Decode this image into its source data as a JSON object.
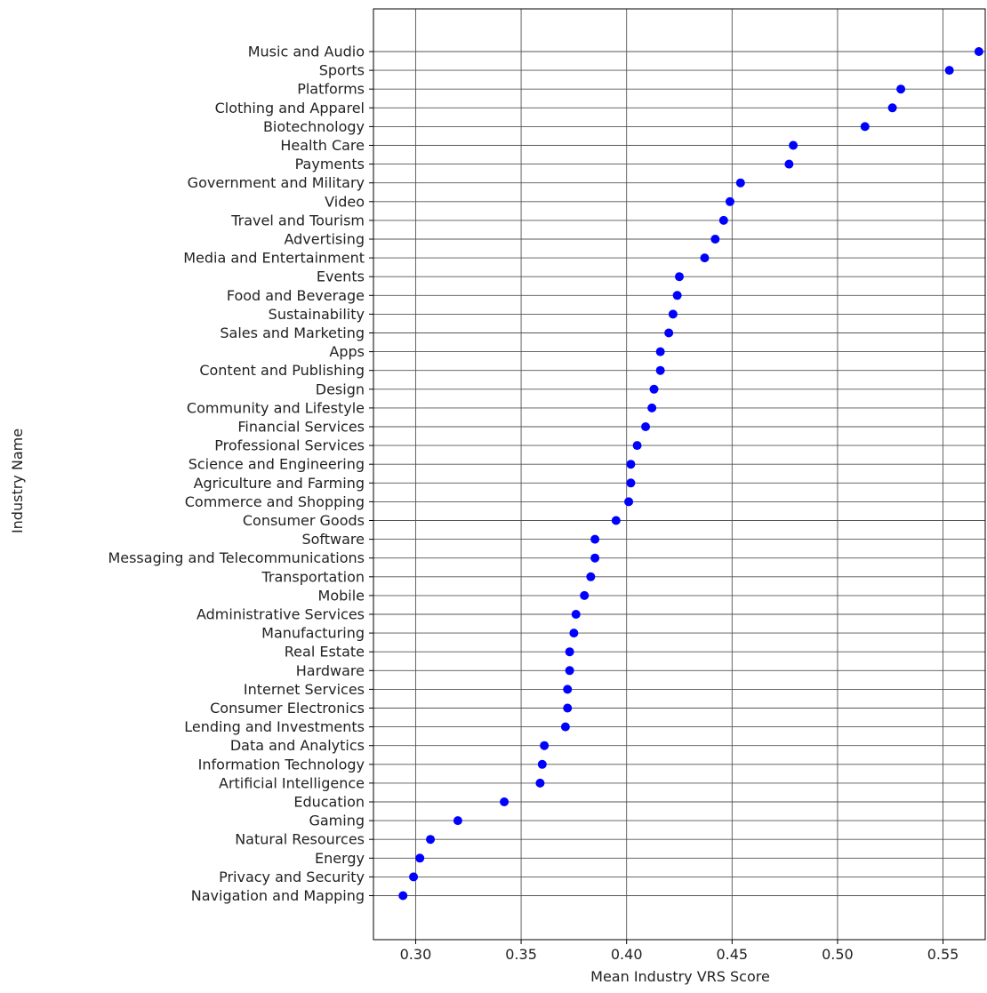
{
  "chart_data": {
    "type": "scatter",
    "title": "",
    "xlabel": "Mean Industry VRS Score",
    "ylabel": "Industry Name",
    "xlim": [
      0.28,
      0.57
    ],
    "xticks": [
      0.3,
      0.35,
      0.4,
      0.45,
      0.5,
      0.55
    ],
    "xtick_labels": [
      "0.30",
      "0.35",
      "0.40",
      "0.45",
      "0.50",
      "0.55"
    ],
    "grid": true,
    "marker_color": "#0000ff",
    "points": [
      {
        "category": "Music and Audio",
        "value": 0.567
      },
      {
        "category": "Sports",
        "value": 0.553
      },
      {
        "category": "Platforms",
        "value": 0.53
      },
      {
        "category": "Clothing and Apparel",
        "value": 0.526
      },
      {
        "category": "Biotechnology",
        "value": 0.513
      },
      {
        "category": "Health Care",
        "value": 0.479
      },
      {
        "category": "Payments",
        "value": 0.477
      },
      {
        "category": "Government and Military",
        "value": 0.454
      },
      {
        "category": "Video",
        "value": 0.449
      },
      {
        "category": "Travel and Tourism",
        "value": 0.446
      },
      {
        "category": "Advertising",
        "value": 0.442
      },
      {
        "category": "Media and Entertainment",
        "value": 0.437
      },
      {
        "category": "Events",
        "value": 0.425
      },
      {
        "category": "Food and Beverage",
        "value": 0.424
      },
      {
        "category": "Sustainability",
        "value": 0.422
      },
      {
        "category": "Sales and Marketing",
        "value": 0.42
      },
      {
        "category": "Apps",
        "value": 0.416
      },
      {
        "category": "Content and Publishing",
        "value": 0.416
      },
      {
        "category": "Design",
        "value": 0.413
      },
      {
        "category": "Community and Lifestyle",
        "value": 0.412
      },
      {
        "category": "Financial Services",
        "value": 0.409
      },
      {
        "category": "Professional Services",
        "value": 0.405
      },
      {
        "category": "Science and Engineering",
        "value": 0.402
      },
      {
        "category": "Agriculture and Farming",
        "value": 0.402
      },
      {
        "category": "Commerce and Shopping",
        "value": 0.401
      },
      {
        "category": "Consumer Goods",
        "value": 0.395
      },
      {
        "category": "Software",
        "value": 0.385
      },
      {
        "category": "Messaging and Telecommunications",
        "value": 0.385
      },
      {
        "category": "Transportation",
        "value": 0.383
      },
      {
        "category": "Mobile",
        "value": 0.38
      },
      {
        "category": "Administrative Services",
        "value": 0.376
      },
      {
        "category": "Manufacturing",
        "value": 0.375
      },
      {
        "category": "Real Estate",
        "value": 0.373
      },
      {
        "category": "Hardware",
        "value": 0.373
      },
      {
        "category": "Internet Services",
        "value": 0.372
      },
      {
        "category": "Consumer Electronics",
        "value": 0.372
      },
      {
        "category": "Lending and Investments",
        "value": 0.371
      },
      {
        "category": "Data and Analytics",
        "value": 0.361
      },
      {
        "category": "Information Technology",
        "value": 0.36
      },
      {
        "category": "Artificial Intelligence",
        "value": 0.359
      },
      {
        "category": "Education",
        "value": 0.342
      },
      {
        "category": "Gaming",
        "value": 0.32
      },
      {
        "category": "Natural Resources",
        "value": 0.307
      },
      {
        "category": "Energy",
        "value": 0.302
      },
      {
        "category": "Privacy and Security",
        "value": 0.299
      },
      {
        "category": "Navigation and Mapping",
        "value": 0.294
      }
    ]
  }
}
